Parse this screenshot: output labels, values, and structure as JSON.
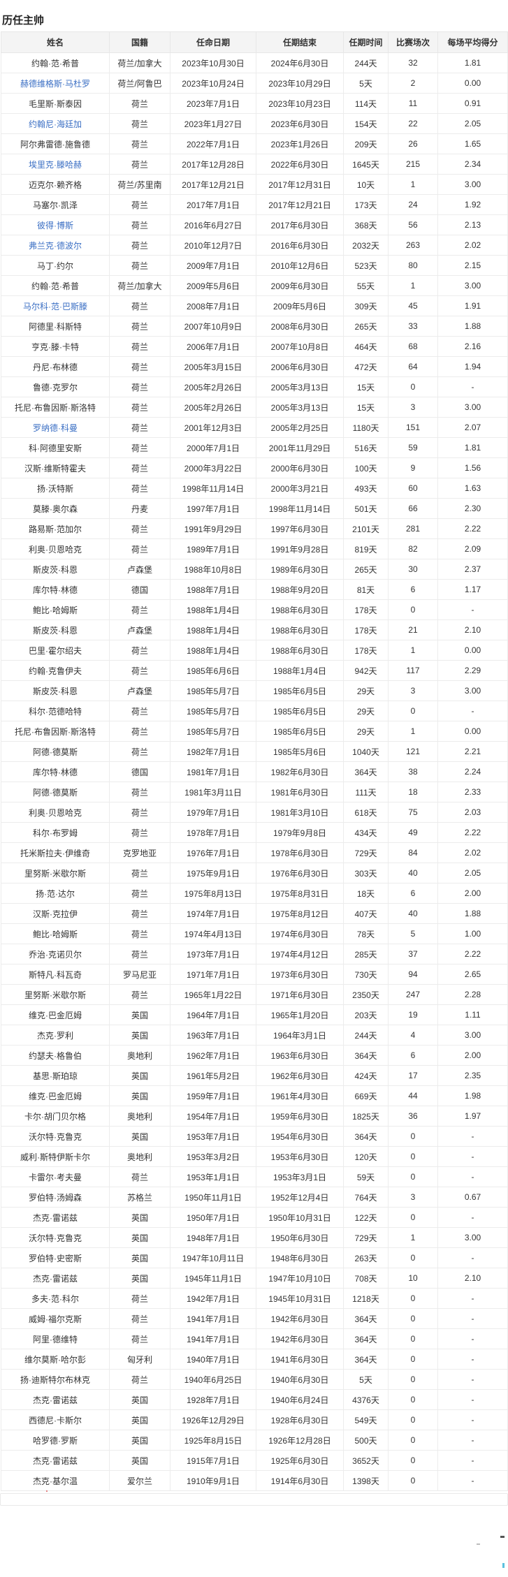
{
  "page": {
    "title": "历任主帅"
  },
  "table": {
    "columns": [
      {
        "key": "name",
        "label": "姓名"
      },
      {
        "key": "nationality",
        "label": "国籍"
      },
      {
        "key": "start",
        "label": "任命日期"
      },
      {
        "key": "end",
        "label": "任期结束"
      },
      {
        "key": "duration",
        "label": "任期时间"
      },
      {
        "key": "matches",
        "label": "比赛场次"
      },
      {
        "key": "avg",
        "label": "每场平均得分"
      }
    ],
    "link_color": "#3b6fc4",
    "rows": [
      {
        "name": "约翰·范·希普",
        "nationality": "荷兰/加拿大",
        "start": "2023年10月30日",
        "end": "2024年6月30日",
        "duration": "244天",
        "matches": "32",
        "avg": "1.81",
        "link": false
      },
      {
        "name": "赫德维格斯·马杜罗",
        "nationality": "荷兰/阿鲁巴",
        "start": "2023年10月24日",
        "end": "2023年10月29日",
        "duration": "5天",
        "matches": "2",
        "avg": "0.00",
        "link": true
      },
      {
        "name": "毛里斯·斯泰因",
        "nationality": "荷兰",
        "start": "2023年7月1日",
        "end": "2023年10月23日",
        "duration": "114天",
        "matches": "11",
        "avg": "0.91",
        "link": false
      },
      {
        "name": "约翰尼·海廷加",
        "nationality": "荷兰",
        "start": "2023年1月27日",
        "end": "2023年6月30日",
        "duration": "154天",
        "matches": "22",
        "avg": "2.05",
        "link": true
      },
      {
        "name": "阿尔弗雷德·施鲁德",
        "nationality": "荷兰",
        "start": "2022年7月1日",
        "end": "2023年1月26日",
        "duration": "209天",
        "matches": "26",
        "avg": "1.65",
        "link": false
      },
      {
        "name": "埃里克·滕哈赫",
        "nationality": "荷兰",
        "start": "2017年12月28日",
        "end": "2022年6月30日",
        "duration": "1645天",
        "matches": "215",
        "avg": "2.34",
        "link": true
      },
      {
        "name": "迈克尔·赖齐格",
        "nationality": "荷兰/苏里南",
        "start": "2017年12月21日",
        "end": "2017年12月31日",
        "duration": "10天",
        "matches": "1",
        "avg": "3.00",
        "link": false
      },
      {
        "name": "马塞尔·凯泽",
        "nationality": "荷兰",
        "start": "2017年7月1日",
        "end": "2017年12月21日",
        "duration": "173天",
        "matches": "24",
        "avg": "1.92",
        "link": false
      },
      {
        "name": "彼得·博斯",
        "nationality": "荷兰",
        "start": "2016年6月27日",
        "end": "2017年6月30日",
        "duration": "368天",
        "matches": "56",
        "avg": "2.13",
        "link": true
      },
      {
        "name": "弗兰克·德波尔",
        "nationality": "荷兰",
        "start": "2010年12月7日",
        "end": "2016年6月30日",
        "duration": "2032天",
        "matches": "263",
        "avg": "2.02",
        "link": true
      },
      {
        "name": "马丁·约尔",
        "nationality": "荷兰",
        "start": "2009年7月1日",
        "end": "2010年12月6日",
        "duration": "523天",
        "matches": "80",
        "avg": "2.15",
        "link": false
      },
      {
        "name": "约翰·范·希普",
        "nationality": "荷兰/加拿大",
        "start": "2009年5月6日",
        "end": "2009年6月30日",
        "duration": "55天",
        "matches": "1",
        "avg": "3.00",
        "link": false
      },
      {
        "name": "马尔科·范·巴斯滕",
        "nationality": "荷兰",
        "start": "2008年7月1日",
        "end": "2009年5月6日",
        "duration": "309天",
        "matches": "45",
        "avg": "1.91",
        "link": true
      },
      {
        "name": "阿德里·科斯特",
        "nationality": "荷兰",
        "start": "2007年10月9日",
        "end": "2008年6月30日",
        "duration": "265天",
        "matches": "33",
        "avg": "1.88",
        "link": false
      },
      {
        "name": "亨克·滕·卡特",
        "nationality": "荷兰",
        "start": "2006年7月1日",
        "end": "2007年10月8日",
        "duration": "464天",
        "matches": "68",
        "avg": "2.16",
        "link": false
      },
      {
        "name": "丹尼·布林德",
        "nationality": "荷兰",
        "start": "2005年3月15日",
        "end": "2006年6月30日",
        "duration": "472天",
        "matches": "64",
        "avg": "1.94",
        "link": false
      },
      {
        "name": "鲁德·克罗尔",
        "nationality": "荷兰",
        "start": "2005年2月26日",
        "end": "2005年3月13日",
        "duration": "15天",
        "matches": "0",
        "avg": "-",
        "link": false
      },
      {
        "name": "托尼·布鲁因斯·斯洛特",
        "nationality": "荷兰",
        "start": "2005年2月26日",
        "end": "2005年3月13日",
        "duration": "15天",
        "matches": "3",
        "avg": "3.00",
        "link": false
      },
      {
        "name": "罗纳德·科曼",
        "nationality": "荷兰",
        "start": "2001年12月3日",
        "end": "2005年2月25日",
        "duration": "1180天",
        "matches": "151",
        "avg": "2.07",
        "link": true
      },
      {
        "name": "科·阿德里安斯",
        "nationality": "荷兰",
        "start": "2000年7月1日",
        "end": "2001年11月29日",
        "duration": "516天",
        "matches": "59",
        "avg": "1.81",
        "link": false
      },
      {
        "name": "汉斯·维斯特霍夫",
        "nationality": "荷兰",
        "start": "2000年3月22日",
        "end": "2000年6月30日",
        "duration": "100天",
        "matches": "9",
        "avg": "1.56",
        "link": false
      },
      {
        "name": "扬·沃特斯",
        "nationality": "荷兰",
        "start": "1998年11月14日",
        "end": "2000年3月21日",
        "duration": "493天",
        "matches": "60",
        "avg": "1.63",
        "link": false
      },
      {
        "name": "莫滕·奥尔森",
        "nationality": "丹麦",
        "start": "1997年7月1日",
        "end": "1998年11月14日",
        "duration": "501天",
        "matches": "66",
        "avg": "2.30",
        "link": false
      },
      {
        "name": "路易斯·范加尔",
        "nationality": "荷兰",
        "start": "1991年9月29日",
        "end": "1997年6月30日",
        "duration": "2101天",
        "matches": "281",
        "avg": "2.22",
        "link": false
      },
      {
        "name": "利奥·贝恩哈克",
        "nationality": "荷兰",
        "start": "1989年7月1日",
        "end": "1991年9月28日",
        "duration": "819天",
        "matches": "82",
        "avg": "2.09",
        "link": false
      },
      {
        "name": "斯皮茨·科恩",
        "nationality": "卢森堡",
        "start": "1988年10月8日",
        "end": "1989年6月30日",
        "duration": "265天",
        "matches": "30",
        "avg": "2.37",
        "link": false
      },
      {
        "name": "库尔特·林德",
        "nationality": "德国",
        "start": "1988年7月1日",
        "end": "1988年9月20日",
        "duration": "81天",
        "matches": "6",
        "avg": "1.17",
        "link": false
      },
      {
        "name": "鲍比·哈姆斯",
        "nationality": "荷兰",
        "start": "1988年1月4日",
        "end": "1988年6月30日",
        "duration": "178天",
        "matches": "0",
        "avg": "-",
        "link": false
      },
      {
        "name": "斯皮茨·科恩",
        "nationality": "卢森堡",
        "start": "1988年1月4日",
        "end": "1988年6月30日",
        "duration": "178天",
        "matches": "21",
        "avg": "2.10",
        "link": false
      },
      {
        "name": "巴里·霍尔绍夫",
        "nationality": "荷兰",
        "start": "1988年1月4日",
        "end": "1988年6月30日",
        "duration": "178天",
        "matches": "1",
        "avg": "0.00",
        "link": false
      },
      {
        "name": "约翰·克鲁伊夫",
        "nationality": "荷兰",
        "start": "1985年6月6日",
        "end": "1988年1月4日",
        "duration": "942天",
        "matches": "117",
        "avg": "2.29",
        "link": false
      },
      {
        "name": "斯皮茨·科恩",
        "nationality": "卢森堡",
        "start": "1985年5月7日",
        "end": "1985年6月5日",
        "duration": "29天",
        "matches": "3",
        "avg": "3.00",
        "link": false
      },
      {
        "name": "科尔·范德哈特",
        "nationality": "荷兰",
        "start": "1985年5月7日",
        "end": "1985年6月5日",
        "duration": "29天",
        "matches": "0",
        "avg": "-",
        "link": false
      },
      {
        "name": "托尼·布鲁因斯·斯洛特",
        "nationality": "荷兰",
        "start": "1985年5月7日",
        "end": "1985年6月5日",
        "duration": "29天",
        "matches": "1",
        "avg": "0.00",
        "link": false
      },
      {
        "name": "阿德·德莫斯",
        "nationality": "荷兰",
        "start": "1982年7月1日",
        "end": "1985年5月6日",
        "duration": "1040天",
        "matches": "121",
        "avg": "2.21",
        "link": false
      },
      {
        "name": "库尔特·林德",
        "nationality": "德国",
        "start": "1981年7月1日",
        "end": "1982年6月30日",
        "duration": "364天",
        "matches": "38",
        "avg": "2.24",
        "link": false
      },
      {
        "name": "阿德·德莫斯",
        "nationality": "荷兰",
        "start": "1981年3月11日",
        "end": "1981年6月30日",
        "duration": "111天",
        "matches": "18",
        "avg": "2.33",
        "link": false
      },
      {
        "name": "利奥·贝恩哈克",
        "nationality": "荷兰",
        "start": "1979年7月1日",
        "end": "1981年3月10日",
        "duration": "618天",
        "matches": "75",
        "avg": "2.03",
        "link": false
      },
      {
        "name": "科尔·布罗姆",
        "nationality": "荷兰",
        "start": "1978年7月1日",
        "end": "1979年9月8日",
        "duration": "434天",
        "matches": "49",
        "avg": "2.22",
        "link": false
      },
      {
        "name": "托米斯拉夫·伊维奇",
        "nationality": "克罗地亚",
        "start": "1976年7月1日",
        "end": "1978年6月30日",
        "duration": "729天",
        "matches": "84",
        "avg": "2.02",
        "link": false
      },
      {
        "name": "里努斯·米歇尔斯",
        "nationality": "荷兰",
        "start": "1975年9月1日",
        "end": "1976年6月30日",
        "duration": "303天",
        "matches": "40",
        "avg": "2.05",
        "link": false
      },
      {
        "name": "扬·范·达尔",
        "nationality": "荷兰",
        "start": "1975年8月13日",
        "end": "1975年8月31日",
        "duration": "18天",
        "matches": "6",
        "avg": "2.00",
        "link": false
      },
      {
        "name": "汉斯·克拉伊",
        "nationality": "荷兰",
        "start": "1974年7月1日",
        "end": "1975年8月12日",
        "duration": "407天",
        "matches": "40",
        "avg": "1.88",
        "link": false
      },
      {
        "name": "鲍比·哈姆斯",
        "nationality": "荷兰",
        "start": "1974年4月13日",
        "end": "1974年6月30日",
        "duration": "78天",
        "matches": "5",
        "avg": "1.00",
        "link": false
      },
      {
        "name": "乔治·克诺贝尔",
        "nationality": "荷兰",
        "start": "1973年7月1日",
        "end": "1974年4月12日",
        "duration": "285天",
        "matches": "37",
        "avg": "2.22",
        "link": false
      },
      {
        "name": "斯特凡·科瓦奇",
        "nationality": "罗马尼亚",
        "start": "1971年7月1日",
        "end": "1973年6月30日",
        "duration": "730天",
        "matches": "94",
        "avg": "2.65",
        "link": false
      },
      {
        "name": "里努斯·米歇尔斯",
        "nationality": "荷兰",
        "start": "1965年1月22日",
        "end": "1971年6月30日",
        "duration": "2350天",
        "matches": "247",
        "avg": "2.28",
        "link": false
      },
      {
        "name": "维克·巴金厄姆",
        "nationality": "英国",
        "start": "1964年7月1日",
        "end": "1965年1月20日",
        "duration": "203天",
        "matches": "19",
        "avg": "1.11",
        "link": false
      },
      {
        "name": "杰克·罗利",
        "nationality": "英国",
        "start": "1963年7月1日",
        "end": "1964年3月1日",
        "duration": "244天",
        "matches": "4",
        "avg": "3.00",
        "link": false
      },
      {
        "name": "约瑟夫·格鲁伯",
        "nationality": "奥地利",
        "start": "1962年7月1日",
        "end": "1963年6月30日",
        "duration": "364天",
        "matches": "6",
        "avg": "2.00",
        "link": false
      },
      {
        "name": "基思·斯珀琼",
        "nationality": "英国",
        "start": "1961年5月2日",
        "end": "1962年6月30日",
        "duration": "424天",
        "matches": "17",
        "avg": "2.35",
        "link": false
      },
      {
        "name": "维克·巴金厄姆",
        "nationality": "英国",
        "start": "1959年7月1日",
        "end": "1961年4月30日",
        "duration": "669天",
        "matches": "44",
        "avg": "1.98",
        "link": false
      },
      {
        "name": "卡尔·胡门贝尔格",
        "nationality": "奥地利",
        "start": "1954年7月1日",
        "end": "1959年6月30日",
        "duration": "1825天",
        "matches": "36",
        "avg": "1.97",
        "link": false
      },
      {
        "name": "沃尔特·克鲁克",
        "nationality": "英国",
        "start": "1953年7月1日",
        "end": "1954年6月30日",
        "duration": "364天",
        "matches": "0",
        "avg": "-",
        "link": false
      },
      {
        "name": "威利·斯特伊斯卡尔",
        "nationality": "奥地利",
        "start": "1953年3月2日",
        "end": "1953年6月30日",
        "duration": "120天",
        "matches": "0",
        "avg": "-",
        "link": false
      },
      {
        "name": "卡雷尔·考夫曼",
        "nationality": "荷兰",
        "start": "1953年1月1日",
        "end": "1953年3月1日",
        "duration": "59天",
        "matches": "0",
        "avg": "-",
        "link": false
      },
      {
        "name": "罗伯特·汤姆森",
        "nationality": "苏格兰",
        "start": "1950年11月1日",
        "end": "1952年12月4日",
        "duration": "764天",
        "matches": "3",
        "avg": "0.67",
        "link": false
      },
      {
        "name": "杰克·雷诺兹",
        "nationality": "英国",
        "start": "1950年7月1日",
        "end": "1950年10月31日",
        "duration": "122天",
        "matches": "0",
        "avg": "-",
        "link": false
      },
      {
        "name": "沃尔特·克鲁克",
        "nationality": "英国",
        "start": "1948年7月1日",
        "end": "1950年6月30日",
        "duration": "729天",
        "matches": "1",
        "avg": "3.00",
        "link": false
      },
      {
        "name": "罗伯特·史密斯",
        "nationality": "英国",
        "start": "1947年10月11日",
        "end": "1948年6月30日",
        "duration": "263天",
        "matches": "0",
        "avg": "-",
        "link": false
      },
      {
        "name": "杰克·雷诺兹",
        "nationality": "英国",
        "start": "1945年11月1日",
        "end": "1947年10月10日",
        "duration": "708天",
        "matches": "10",
        "avg": "2.10",
        "link": false
      },
      {
        "name": "多夫·范·科尔",
        "nationality": "荷兰",
        "start": "1942年7月1日",
        "end": "1945年10月31日",
        "duration": "1218天",
        "matches": "0",
        "avg": "-",
        "link": false
      },
      {
        "name": "威姆·福尔克斯",
        "nationality": "荷兰",
        "start": "1941年7月1日",
        "end": "1942年6月30日",
        "duration": "364天",
        "matches": "0",
        "avg": "-",
        "link": false
      },
      {
        "name": "阿里·德维特",
        "nationality": "荷兰",
        "start": "1941年7月1日",
        "end": "1942年6月30日",
        "duration": "364天",
        "matches": "0",
        "avg": "-",
        "link": false
      },
      {
        "name": "维尔莫斯·哈尔彭",
        "nationality": "匈牙利",
        "start": "1940年7月1日",
        "end": "1941年6月30日",
        "duration": "364天",
        "matches": "0",
        "avg": "-",
        "link": false
      },
      {
        "name": "扬·迪斯特尔布林克",
        "nationality": "荷兰",
        "start": "1940年6月25日",
        "end": "1940年6月30日",
        "duration": "5天",
        "matches": "0",
        "avg": "-",
        "link": false
      },
      {
        "name": "杰克·雷诺兹",
        "nationality": "英国",
        "start": "1928年7月1日",
        "end": "1940年6月24日",
        "duration": "4376天",
        "matches": "0",
        "avg": "-",
        "link": false
      },
      {
        "name": "西德尼·卡斯尔",
        "nationality": "英国",
        "start": "1926年12月29日",
        "end": "1928年6月30日",
        "duration": "549天",
        "matches": "0",
        "avg": "-",
        "link": false
      },
      {
        "name": "哈罗德·罗斯",
        "nationality": "英国",
        "start": "1925年8月15日",
        "end": "1926年12月28日",
        "duration": "500天",
        "matches": "0",
        "avg": "-",
        "link": false
      },
      {
        "name": "杰克·雷诺兹",
        "nationality": "英国",
        "start": "1915年7月1日",
        "end": "1925年6月30日",
        "duration": "3652天",
        "matches": "0",
        "avg": "-",
        "link": false
      },
      {
        "name": "杰克·基尔温",
        "nationality": "爱尔兰",
        "start": "1910年9月1日",
        "end": "1914年6月30日",
        "duration": "1398天",
        "matches": "0",
        "avg": "-",
        "link": false
      }
    ]
  }
}
